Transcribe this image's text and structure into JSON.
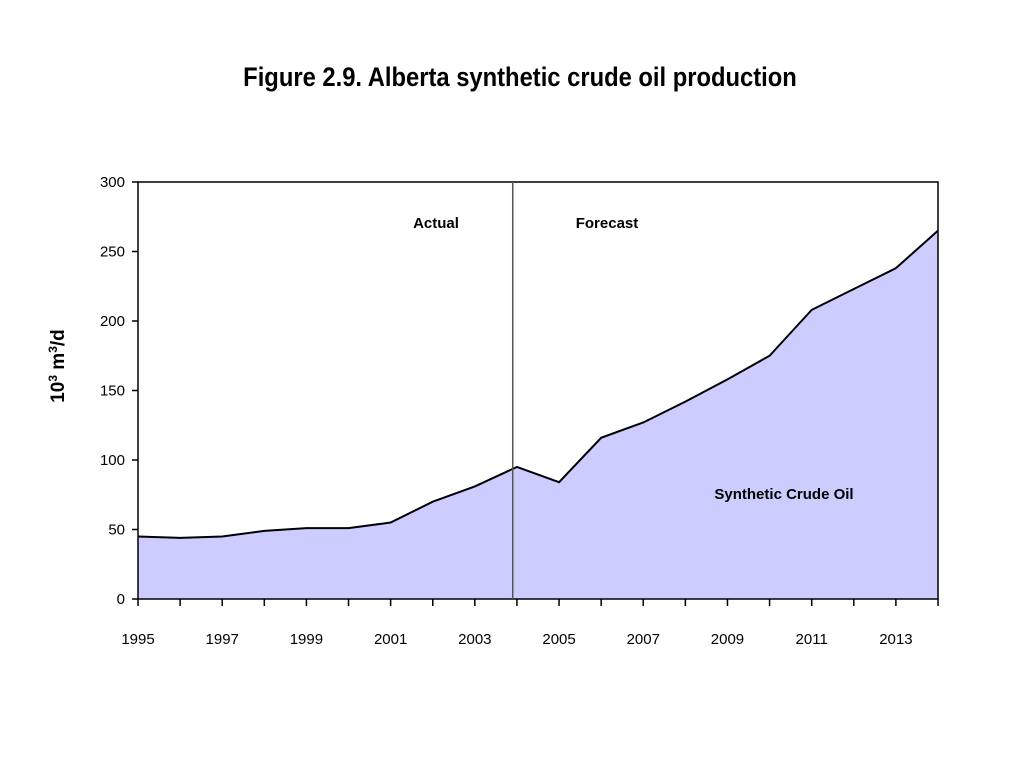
{
  "chart_data": {
    "type": "area",
    "title": "Figure 2.9. Alberta synthetic crude oil production",
    "ylabel": {
      "base": "10",
      "sup1": "3",
      "mid": " m",
      "sup2": "3",
      "tail": "/d"
    },
    "xlabel": "",
    "x": [
      1995,
      1996,
      1997,
      1998,
      1999,
      2000,
      2001,
      2002,
      2003,
      2004,
      2005,
      2006,
      2007,
      2008,
      2009,
      2010,
      2011,
      2012,
      2013,
      2014
    ],
    "series": [
      {
        "name": "Synthetic Crude Oil",
        "values": [
          45,
          44,
          45,
          49,
          51,
          51,
          55,
          70,
          81,
          95,
          84,
          116,
          127,
          142,
          158,
          175,
          208,
          223,
          238,
          265
        ]
      }
    ],
    "xlim": [
      1995,
      2014
    ],
    "ylim": [
      0,
      300
    ],
    "yticks": [
      0,
      50,
      100,
      150,
      200,
      250,
      300
    ],
    "xtick_labels": [
      1995,
      1997,
      1999,
      2001,
      2003,
      2005,
      2007,
      2009,
      2011,
      2013
    ],
    "divider_x": 2003.9,
    "annotations": {
      "actual": "Actual",
      "forecast": "Forecast",
      "series_label": "Synthetic Crude Oil"
    },
    "colors": {
      "fill": "#ccccff",
      "line": "#000000",
      "divider": "#555555"
    },
    "grid": false
  }
}
